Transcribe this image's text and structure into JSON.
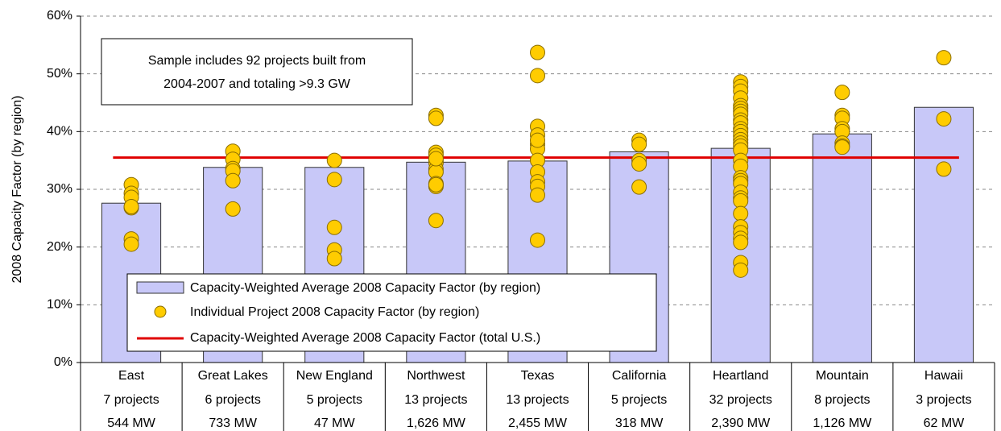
{
  "chart_data": {
    "type": "bar",
    "ylabel": "2008 Capacity Factor (by region)",
    "annotation": [
      "Sample includes 92 projects built from",
      "2004-2007 and totaling >9.3 GW"
    ],
    "categories": [
      "East",
      "Great Lakes",
      "New England",
      "Northwest",
      "Texas",
      "California",
      "Heartland",
      "Mountain",
      "Hawaii"
    ],
    "category_projects": [
      "7 projects",
      "6 projects",
      "5 projects",
      "13 projects",
      "13 projects",
      "5 projects",
      "32 projects",
      "8 projects",
      "3 projects"
    ],
    "category_capacity": [
      "544 MW",
      "733 MW",
      "47 MW",
      "1,626 MW",
      "2,455 MW",
      "318 MW",
      "2,390 MW",
      "1,126 MW",
      "62 MW"
    ],
    "ylim": [
      0,
      60
    ],
    "yticks": [
      {
        "value": 0,
        "label": "0%"
      },
      {
        "value": 10,
        "label": "10%"
      },
      {
        "value": 20,
        "label": "20%"
      },
      {
        "value": 30,
        "label": "30%"
      },
      {
        "value": 40,
        "label": "40%"
      },
      {
        "value": 50,
        "label": "50%"
      },
      {
        "value": 60,
        "label": "60%"
      }
    ],
    "grid": true,
    "series": [
      {
        "name": "Capacity-Weighted Average 2008 Capacity Factor (by region)",
        "color": "#c8c8f8",
        "values": [
          27.6,
          33.8,
          33.8,
          34.7,
          34.9,
          36.5,
          37.1,
          39.6,
          44.2
        ]
      },
      {
        "name": "Individual Project 2008 Capacity Factor (by region)",
        "color": "#ffcc00",
        "values": [
          [
            30.8,
            29.3,
            28.6,
            26.8,
            21.4,
            20.5,
            27.0
          ],
          [
            36.6,
            35.2,
            33.6,
            33.2,
            31.5,
            26.6
          ],
          [
            35.0,
            31.7,
            23.4,
            19.5,
            18.0
          ],
          [
            42.8,
            42.3,
            36.4,
            35.9,
            35.0,
            34.6,
            33.5,
            33.0,
            31.0,
            30.5,
            30.8,
            24.6,
            35.3
          ],
          [
            53.7,
            49.7,
            40.9,
            39.4,
            37.8,
            37.0,
            35.0,
            33.0,
            31.3,
            30.5,
            29.0,
            21.2,
            38.5
          ],
          [
            38.5,
            37.8,
            35.0,
            34.4,
            30.4
          ],
          [
            48.6,
            47.8,
            47.0,
            45.8,
            44.5,
            44.0,
            43.5,
            43.0,
            42.0,
            41.5,
            40.5,
            40.0,
            39.3,
            38.6,
            38.0,
            37.5,
            36.8,
            35.0,
            34.0,
            32.0,
            31.5,
            31.0,
            29.5,
            28.5,
            28.0,
            25.8,
            23.5,
            22.5,
            21.5,
            20.8,
            17.3,
            16.0
          ],
          [
            46.8,
            42.8,
            42.3,
            40.5,
            40.0,
            38.0,
            37.5,
            37.3
          ],
          [
            52.8,
            42.2,
            33.5
          ]
        ]
      },
      {
        "name": "Capacity-Weighted Average 2008 Capacity Factor (total U.S.)",
        "color": "#e00000",
        "value": 35.5
      }
    ]
  }
}
